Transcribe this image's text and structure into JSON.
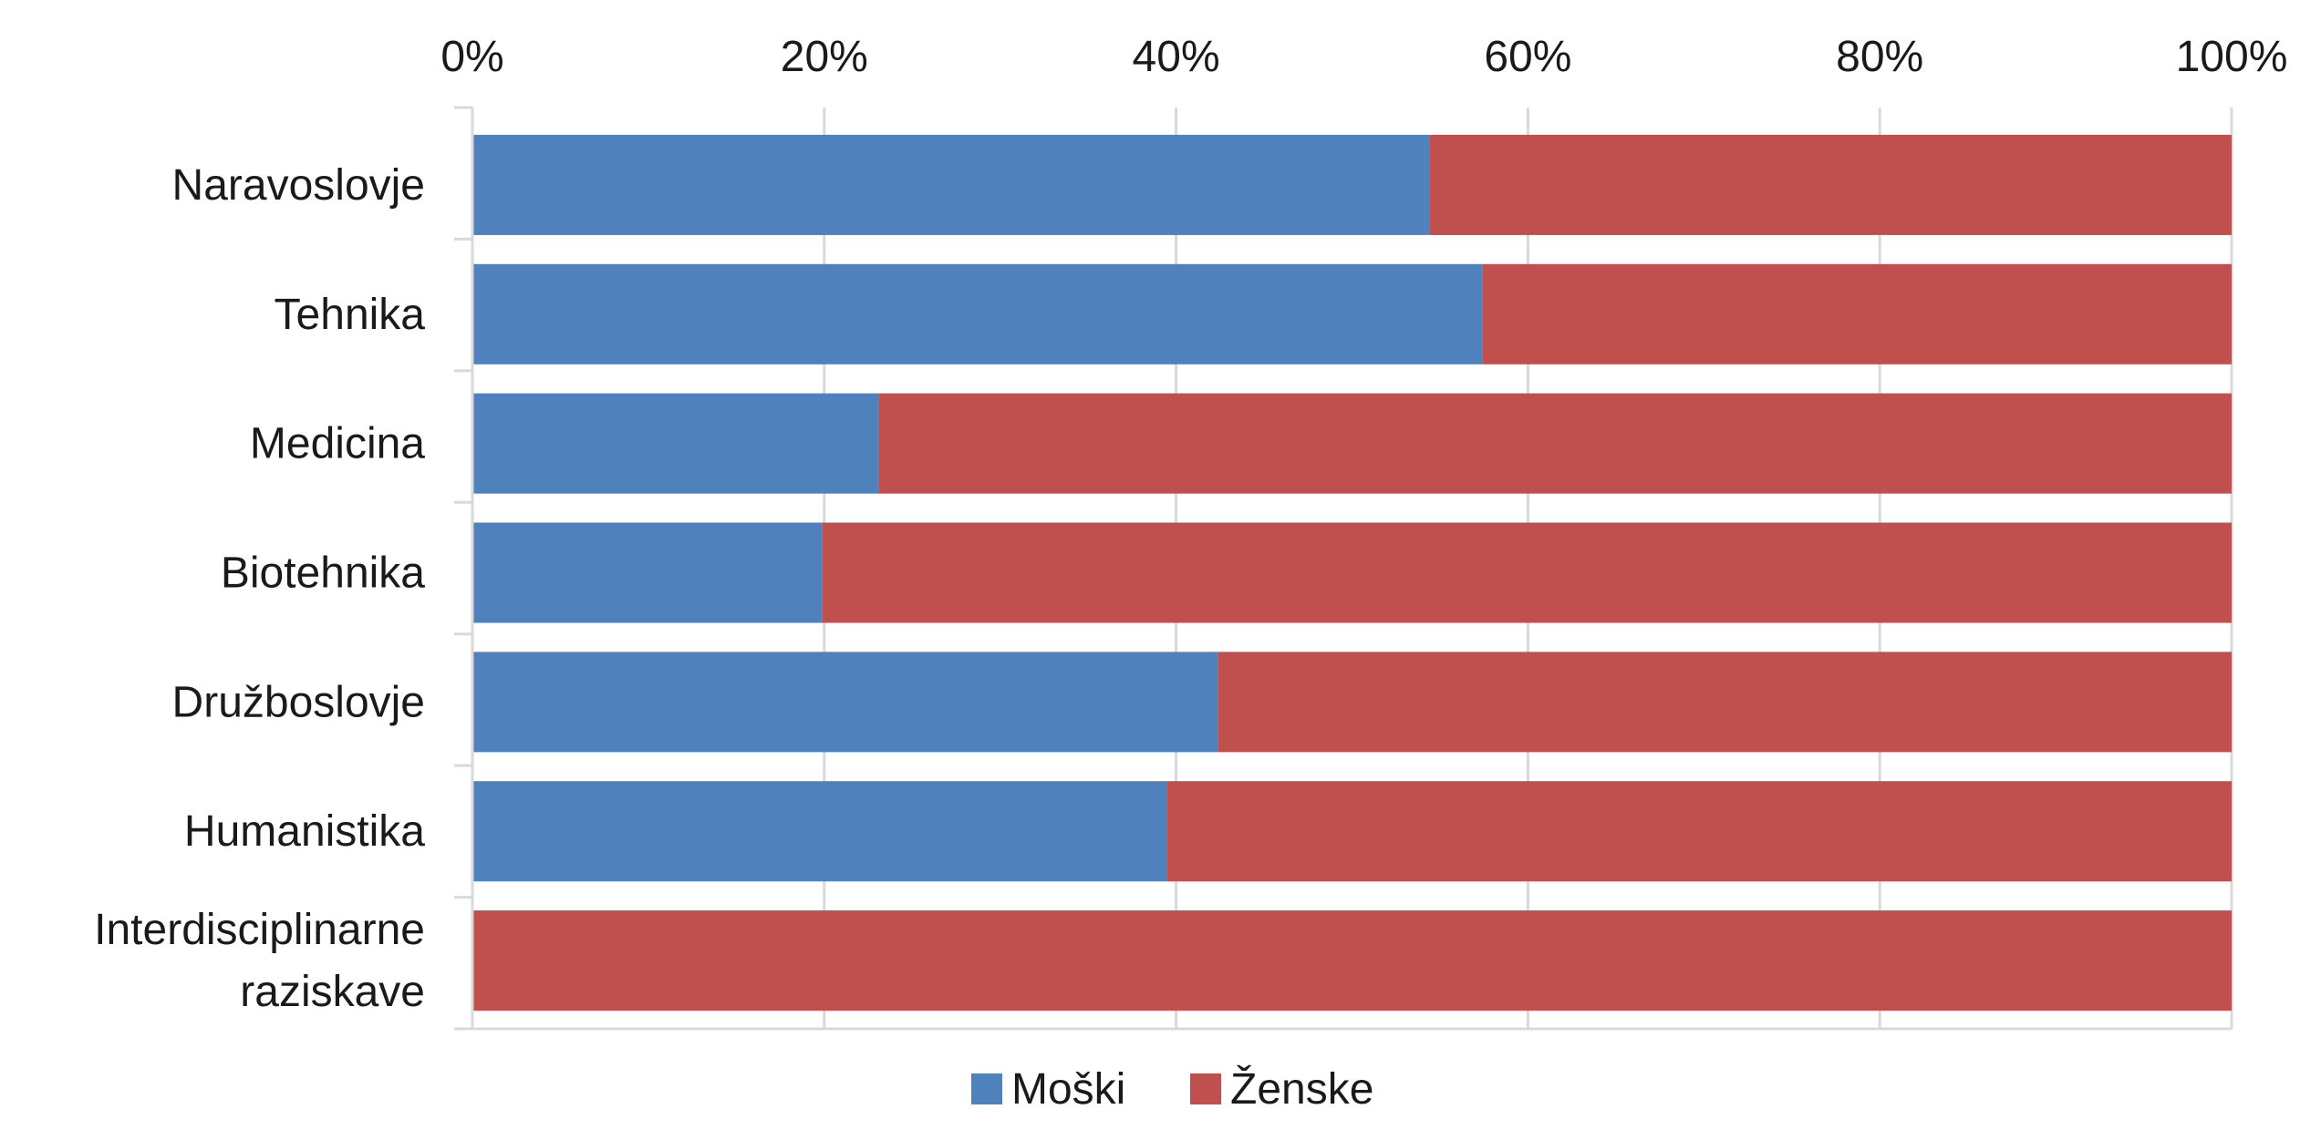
{
  "chart_data": {
    "type": "bar",
    "orientation": "horizontal",
    "stacked": "percent",
    "categories": [
      [
        "Naravoslovje"
      ],
      [
        "Tehnika"
      ],
      [
        "Medicina"
      ],
      [
        "Biotehnika"
      ],
      [
        "Družboslovje"
      ],
      [
        "Humanistika"
      ],
      [
        "Interdisciplinarne",
        "raziskave"
      ]
    ],
    "series": [
      {
        "name": "Moški",
        "color": "#4F81BD",
        "values": [
          54.4,
          57.4,
          23.1,
          19.9,
          42.4,
          39.5,
          0
        ]
      },
      {
        "name": "Ženske",
        "color": "#C0504D",
        "values": [
          45.6,
          42.6,
          76.9,
          80.1,
          57.6,
          60.5,
          100
        ]
      }
    ],
    "xlim": [
      0,
      100
    ],
    "xticks": [
      "0%",
      "20%",
      "40%",
      "60%",
      "80%",
      "100%"
    ],
    "xaxis_position": "top",
    "grid": true,
    "legend": "bottom",
    "gridColor": "#D9D9D9"
  }
}
